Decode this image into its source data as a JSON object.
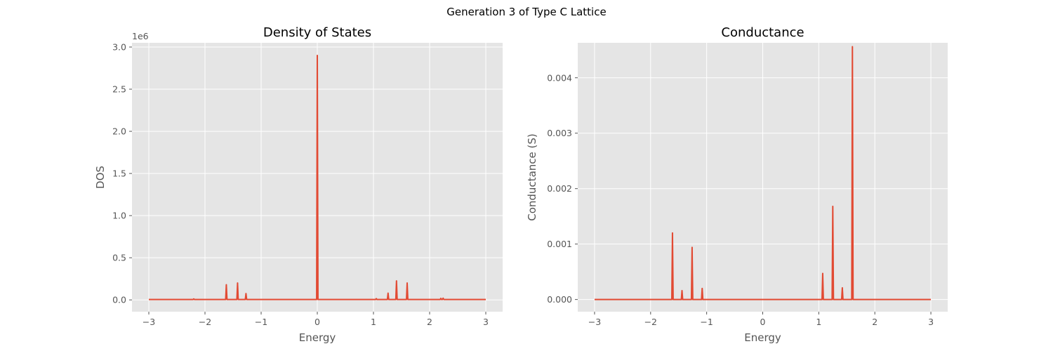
{
  "figure": {
    "suptitle": "Generation 3 of Type C Lattice",
    "colors": {
      "line": "#e24a33",
      "panel_bg": "#e5e5e5",
      "grid": "#ffffff",
      "tick_text": "#555555"
    }
  },
  "chart_data": [
    {
      "type": "line",
      "title": "Density of States",
      "xlabel": "Energy",
      "ylabel": "DOS",
      "y_offset_label": "1e6",
      "xlim": [
        -3.3,
        3.3
      ],
      "ylim": [
        -0.14,
        3.05
      ],
      "xticks": [
        -3,
        -2,
        -1,
        0,
        1,
        2,
        3
      ],
      "xtick_labels": [
        "−3",
        "−2",
        "−1",
        "0",
        "1",
        "2",
        "3"
      ],
      "yticks": [
        0.0,
        0.5,
        1.0,
        1.5,
        2.0,
        2.5,
        3.0
      ],
      "ytick_labels": [
        "0.0",
        "0.5",
        "1.0",
        "1.5",
        "2.0",
        "2.5",
        "3.0"
      ],
      "grid": true,
      "x_range": [
        -3,
        3
      ],
      "baseline": 0.005,
      "peaks": [
        {
          "x": -2.2,
          "y": 0.012
        },
        {
          "x": -1.62,
          "y": 0.18
        },
        {
          "x": -1.42,
          "y": 0.2
        },
        {
          "x": -1.27,
          "y": 0.075
        },
        {
          "x": 0.0,
          "y": 2.9
        },
        {
          "x": 1.05,
          "y": 0.015
        },
        {
          "x": 1.26,
          "y": 0.08
        },
        {
          "x": 1.41,
          "y": 0.225
        },
        {
          "x": 1.6,
          "y": 0.2
        },
        {
          "x": 2.2,
          "y": 0.018
        },
        {
          "x": 2.24,
          "y": 0.02
        }
      ]
    },
    {
      "type": "line",
      "title": "Conductance",
      "xlabel": "Energy",
      "ylabel": "Conductance (S)",
      "xlim": [
        -3.3,
        3.3
      ],
      "ylim": [
        -0.00022,
        0.00463
      ],
      "xticks": [
        -3,
        -2,
        -1,
        0,
        1,
        2,
        3
      ],
      "xtick_labels": [
        "−3",
        "−2",
        "−1",
        "0",
        "1",
        "2",
        "3"
      ],
      "yticks": [
        0.0,
        0.001,
        0.002,
        0.003,
        0.004
      ],
      "ytick_labels": [
        "0.000",
        "0.001",
        "0.002",
        "0.003",
        "0.004"
      ],
      "grid": true,
      "x_range": [
        -3,
        3
      ],
      "baseline": 0.0,
      "peaks": [
        {
          "x": -1.61,
          "y": 0.0012
        },
        {
          "x": -1.44,
          "y": 0.00016
        },
        {
          "x": -1.26,
          "y": 0.00094
        },
        {
          "x": -1.08,
          "y": 0.0002
        },
        {
          "x": 1.07,
          "y": 0.00047
        },
        {
          "x": 1.25,
          "y": 0.00168
        },
        {
          "x": 1.42,
          "y": 0.00021
        },
        {
          "x": 1.6,
          "y": 0.00456
        }
      ]
    }
  ]
}
